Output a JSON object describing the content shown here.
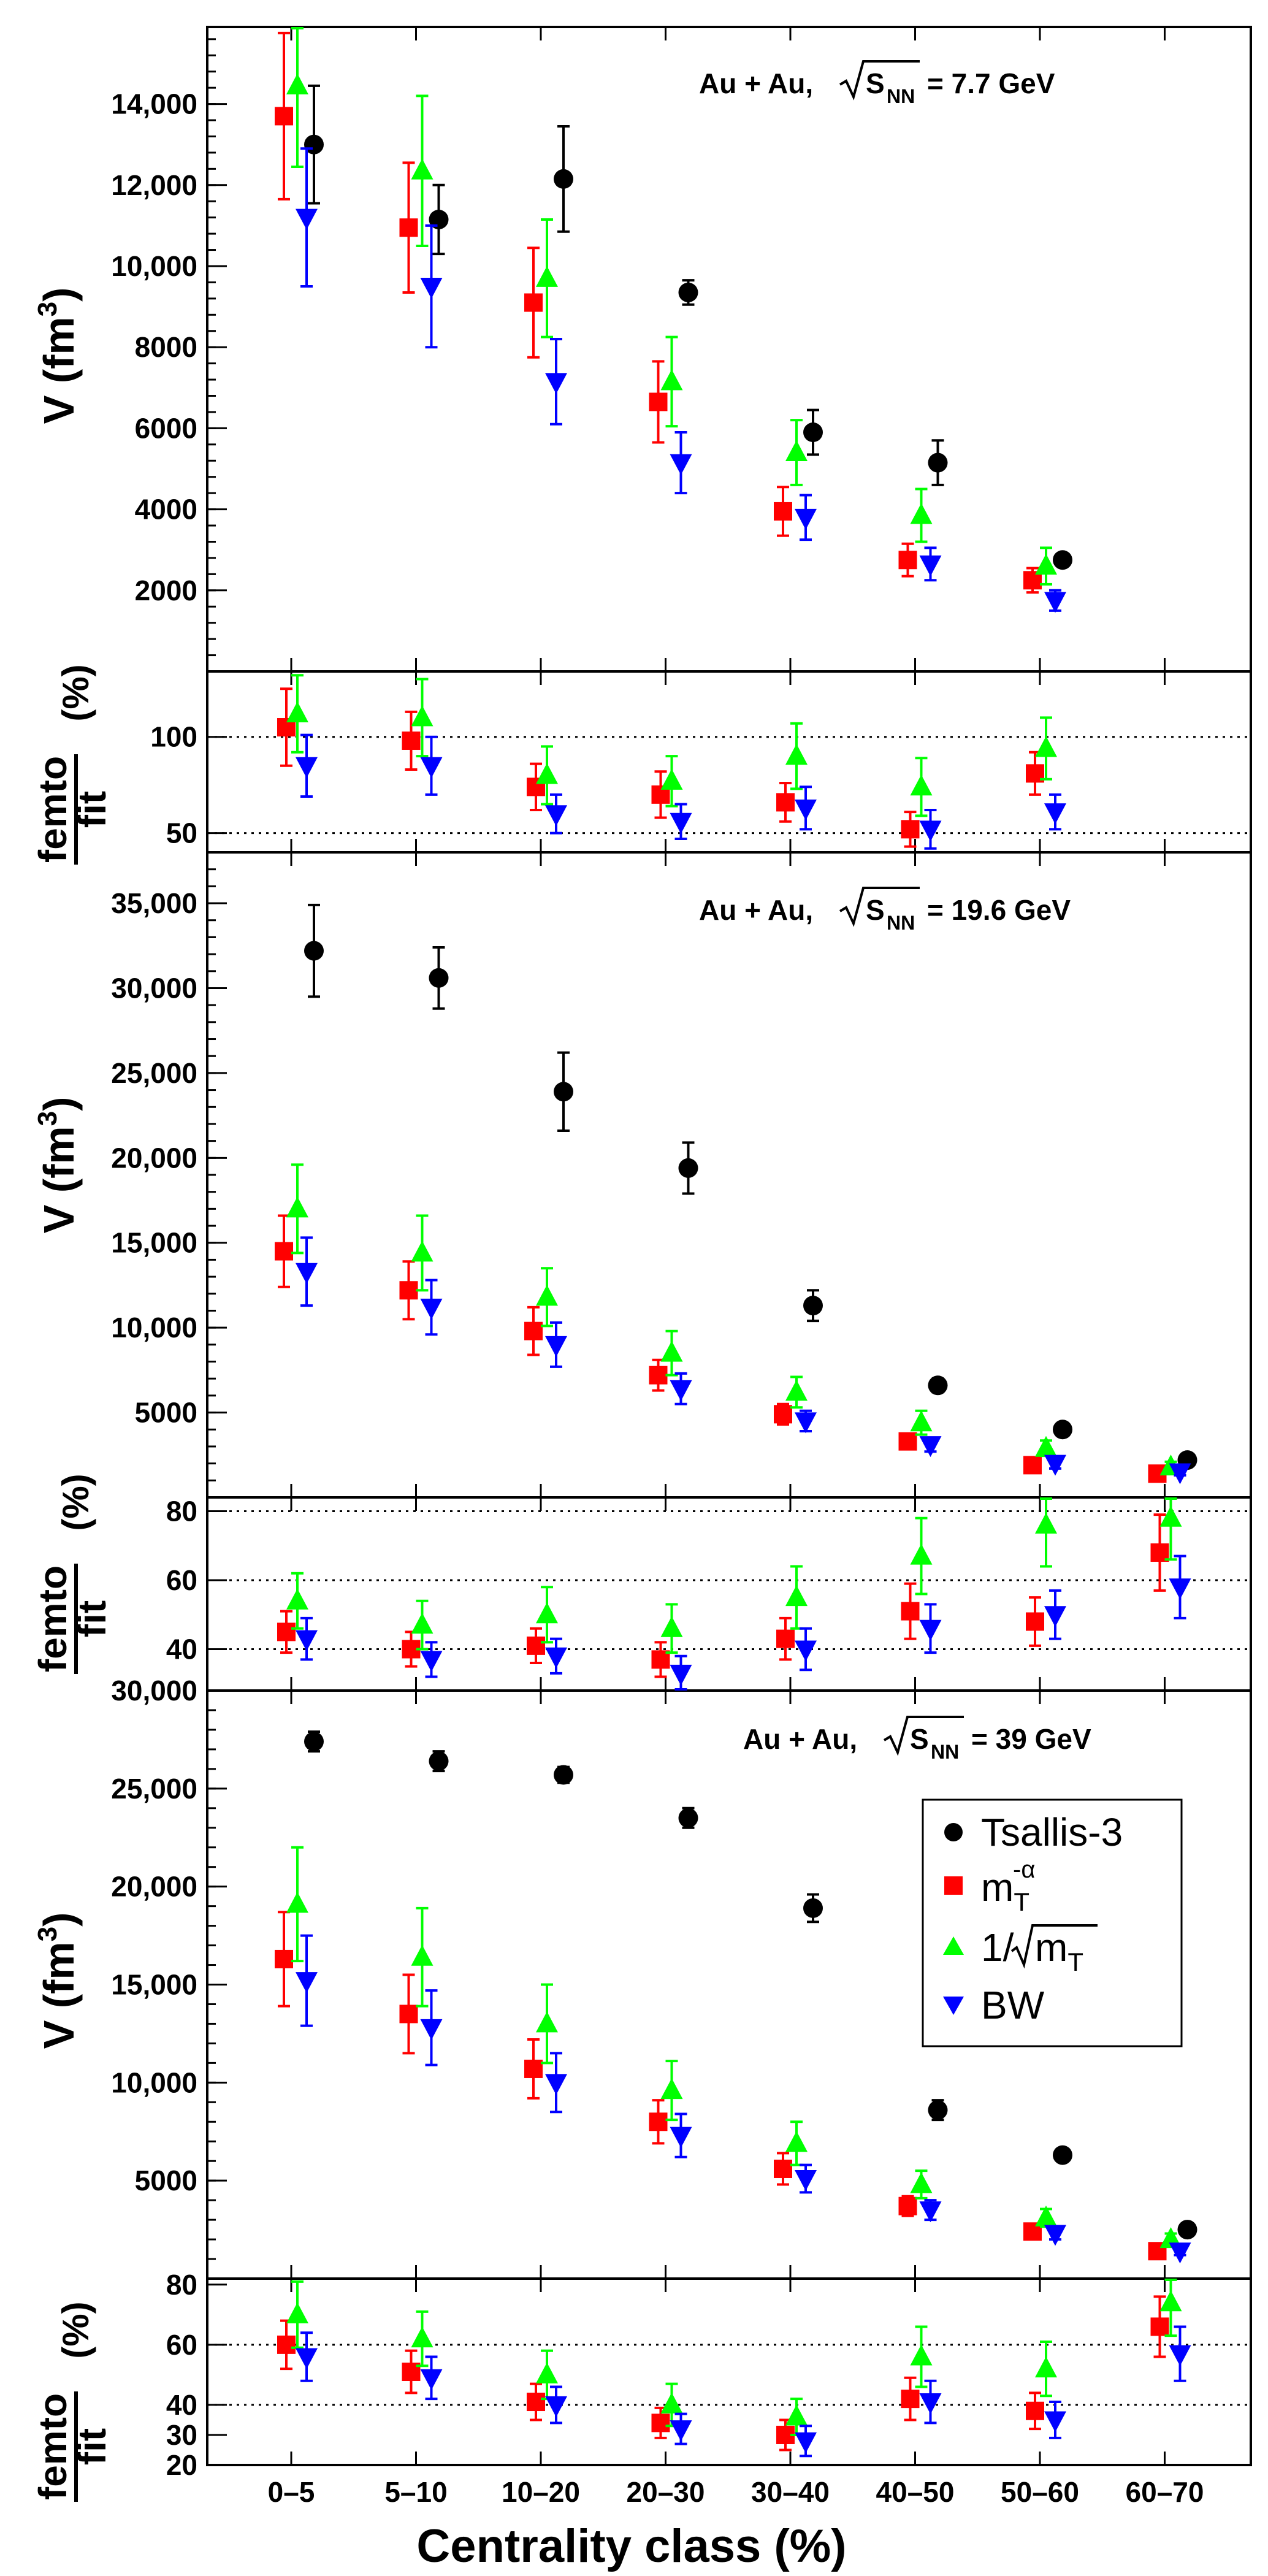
{
  "chart_data": {
    "type": "scatter",
    "x_title": "Centrality class (%)",
    "categories": [
      "0–5",
      "5–10",
      "10–20",
      "20–30",
      "30–40",
      "40–50",
      "50–60",
      "60–70"
    ],
    "series": [
      {
        "key": "tsallis",
        "name": "Tsallis-3",
        "color": "#000000",
        "marker": "circle"
      },
      {
        "key": "mt",
        "name": "m_T^-α",
        "color": "#ff0000",
        "marker": "square"
      },
      {
        "key": "sqrt",
        "name": "1/√m_T",
        "color": "#00ff00",
        "marker": "triangle-up"
      },
      {
        "key": "bw",
        "name": "BW",
        "color": "#0000ff",
        "marker": "triangle-down"
      }
    ],
    "legend": {
      "position": "inside upper-right of bottom volume panel",
      "items": [
        {
          "key": "tsallis",
          "base": "Tsallis-3",
          "sub": "",
          "sup": "",
          "sqrt": false
        },
        {
          "key": "mt",
          "base": "m",
          "sub": "T",
          "sup": "-α",
          "sqrt": false
        },
        {
          "key": "sqrt",
          "base": "1/",
          "sub": "T",
          "sup": "",
          "sqrt": true,
          "inner": "m"
        },
        {
          "key": "bw",
          "base": "BW",
          "sub": "",
          "sup": "",
          "sqrt": false
        }
      ]
    },
    "energies": [
      {
        "system": "Au + Au,",
        "sqrt_s_symbol": "S",
        "sqrt_s_sub": "NN",
        "value": "= 7.7 GeV",
        "volume": {
          "ylabel": "V (fm",
          "ylabel_sup": "3",
          "ylabel_end": ")",
          "ylim": [
            0,
            15900
          ],
          "yticks": [
            2000,
            4000,
            6000,
            8000,
            10000,
            12000,
            14000
          ],
          "ytick_labels": [
            "2000",
            "4000",
            "6000",
            "8000",
            "10,000",
            "12,000",
            "14,000"
          ],
          "series": {
            "tsallis": {
              "values": [
                13000,
                11150,
                12150,
                9350,
                5900,
                5150,
                2750
              ],
              "errors": [
                1450,
                850,
                1300,
                300,
                550,
                550,
                150
              ]
            },
            "mt": {
              "values": [
                13700,
                10950,
                9100,
                6650,
                3950,
                2750,
                2250
              ],
              "errors": [
                2050,
                1600,
                1350,
                1000,
                600,
                400,
                300
              ]
            },
            "sqrt": {
              "values": [
                14450,
                12350,
                9700,
                7150,
                5400,
                3850,
                2600
              ],
              "errors": [
                2000,
                1850,
                1450,
                1100,
                800,
                650,
                450
              ]
            },
            "bw": {
              "values": [
                11200,
                9500,
                7150,
                5150,
                3800,
                2650,
                1750
              ],
              "errors": [
                1700,
                1500,
                1050,
                750,
                550,
                400,
                250
              ]
            }
          }
        },
        "ratio": {
          "ylabel_num": "femto",
          "ylabel_den": "fit",
          "ylabel_unit": "(%)",
          "ylim": [
            40,
            134
          ],
          "yticks": [
            50,
            100
          ],
          "ytick_labels": [
            "50",
            "100"
          ],
          "dotted": [
            50,
            100
          ],
          "series": {
            "mt": {
              "values": [
                105,
                98,
                74,
                70,
                66,
                52,
                81
              ],
              "errors": [
                20,
                15,
                12,
                12,
                10,
                9,
                11
              ]
            },
            "sqrt": {
              "values": [
                112,
                110,
                80,
                77,
                90,
                74,
                94
              ],
              "errors": [
                20,
                20,
                15,
                13,
                17,
                15,
                16
              ]
            },
            "bw": {
              "values": [
                85,
                85,
                60,
                56,
                63,
                52,
                61
              ],
              "errors": [
                16,
                15,
                10,
                9,
                11,
                10,
                9
              ]
            }
          }
        }
      },
      {
        "system": "Au + Au,",
        "sqrt_s_symbol": "S",
        "sqrt_s_sub": "NN",
        "value": "= 19.6 GeV",
        "volume": {
          "ylabel": "V (fm",
          "ylabel_sup": "3",
          "ylabel_end": ")",
          "ylim": [
            0,
            38000
          ],
          "yticks": [
            5000,
            10000,
            15000,
            20000,
            25000,
            30000,
            35000
          ],
          "ytick_labels": [
            "5000",
            "10,000",
            "15,000",
            "20,000",
            "25,000",
            "30,000",
            "35,000"
          ],
          "series": {
            "tsallis": {
              "values": [
                32200,
                30600,
                23900,
                19400,
                11300,
                6600,
                4000,
                2200
              ],
              "errors": [
                2700,
                1800,
                2300,
                1500,
                900,
                400,
                300,
                200
              ]
            },
            "mt": {
              "values": [
                14500,
                12200,
                9800,
                7200,
                4900,
                3300,
                1900,
                1400
              ],
              "errors": [
                2100,
                1700,
                1400,
                900,
                600,
                400,
                200,
                200
              ]
            },
            "sqrt": {
              "values": [
                17000,
                14400,
                11800,
                8500,
                6200,
                4400,
                2900,
                1800
              ],
              "errors": [
                2600,
                2200,
                1700,
                1300,
                900,
                700,
                450,
                300
              ]
            },
            "bw": {
              "values": [
                13300,
                11200,
                9000,
                6400,
                4500,
                3100,
                2000,
                1500
              ],
              "errors": [
                2000,
                1600,
                1300,
                900,
                600,
                400,
                300,
                200
              ]
            }
          }
        },
        "ratio": {
          "ylabel_num": "femto",
          "ylabel_den": "fit",
          "ylabel_unit": "(%)",
          "ylim": [
            28,
            84
          ],
          "yticks": [
            40,
            60,
            80
          ],
          "ytick_labels": [
            "40",
            "60",
            "80"
          ],
          "dotted": [
            40,
            60,
            80
          ],
          "series": {
            "mt": {
              "values": [
                45,
                40,
                41,
                37,
                43,
                51,
                48,
                68
              ],
              "errors": [
                6,
                5,
                5,
                5,
                6,
                8,
                7,
                11
              ]
            },
            "sqrt": {
              "values": [
                54,
                47,
                50,
                46,
                55,
                67,
                76,
                78
              ],
              "errors": [
                8,
                7,
                8,
                7,
                9,
                11,
                12,
                12
              ]
            },
            "bw": {
              "values": [
                43,
                37,
                38,
                33,
                40,
                46,
                50,
                58
              ],
              "errors": [
                6,
                5,
                5,
                5,
                6,
                7,
                7,
                9
              ]
            }
          }
        }
      },
      {
        "system": "Au + Au,",
        "sqrt_s_symbol": "S",
        "sqrt_s_sub": "NN",
        "value": "= 39 GeV",
        "volume": {
          "ylabel": "V (fm",
          "ylabel_sup": "3",
          "ylabel_end": ")",
          "ylim": [
            0,
            30000
          ],
          "yticks": [
            5000,
            10000,
            15000,
            20000,
            25000,
            30000
          ],
          "ytick_labels": [
            "5000",
            "10,000",
            "15,000",
            "20,000",
            "25,000",
            "30,000"
          ],
          "series": {
            "tsallis": {
              "values": [
                27400,
                26400,
                25700,
                23500,
                18900,
                8600,
                6300,
                2500
              ],
              "errors": [
                500,
                500,
                400,
                500,
                700,
                500,
                300,
                200
              ]
            },
            "mt": {
              "values": [
                16300,
                13500,
                10700,
                8000,
                5600,
                3700,
                2400,
                1400
              ],
              "errors": [
                2400,
                2000,
                1500,
                1100,
                800,
                500,
                300,
                200
              ]
            },
            "sqrt": {
              "values": [
                19100,
                16400,
                13000,
                9600,
                6900,
                4800,
                3100,
                2000
              ],
              "errors": [
                2900,
                2500,
                2000,
                1500,
                1100,
                700,
                450,
                300
              ]
            },
            "bw": {
              "values": [
                15200,
                12800,
                10000,
                7300,
                5100,
                3500,
                2300,
                1400
              ],
              "errors": [
                2300,
                1900,
                1500,
                1100,
                700,
                500,
                300,
                200
              ]
            }
          }
        },
        "ratio": {
          "ylabel_num": "femto",
          "ylabel_den": "fit",
          "ylabel_unit": "(%)",
          "ylim": [
            20,
            82
          ],
          "yticks": [
            20,
            30,
            40,
            60,
            80
          ],
          "ytick_labels": [
            "20",
            "30",
            "40",
            "60",
            "80"
          ],
          "dotted": [
            40,
            60
          ],
          "series": {
            "mt": {
              "values": [
                60,
                51,
                41,
                34,
                30,
                42,
                38,
                66
              ],
              "errors": [
                8,
                7,
                6,
                5,
                5,
                7,
                6,
                10
              ]
            },
            "sqrt": {
              "values": [
                70,
                62,
                50,
                40,
                36,
                56,
                52,
                74
              ],
              "errors": [
                11,
                9,
                8,
                7,
                6,
                10,
                9,
                11
              ]
            },
            "bw": {
              "values": [
                56,
                49,
                40,
                32,
                28,
                41,
                35,
                57
              ],
              "errors": [
                8,
                7,
                6,
                5,
                5,
                7,
                6,
                9
              ]
            }
          }
        }
      }
    ]
  }
}
